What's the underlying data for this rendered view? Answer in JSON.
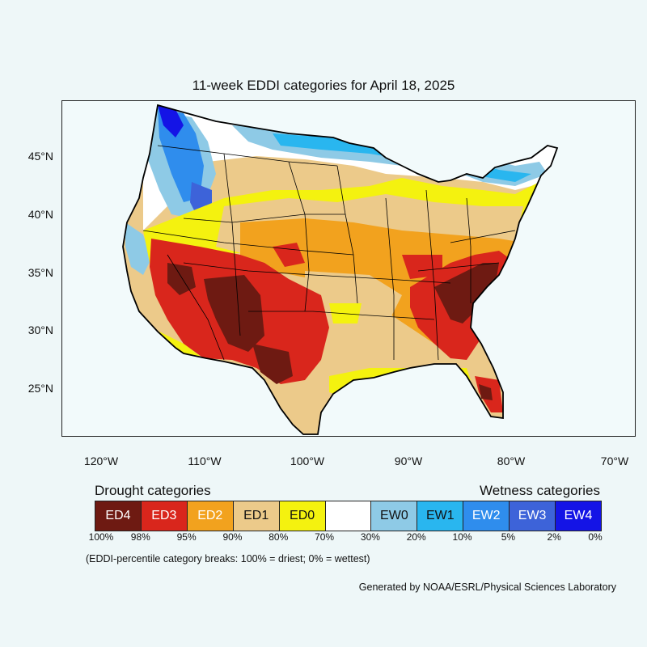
{
  "title": "11-week EDDI categories for April 18, 2025",
  "map": {
    "latitude_labels": [
      "45°N",
      "40°N",
      "35°N",
      "30°N",
      "25°N"
    ],
    "longitude_labels": [
      "120°W",
      "110°W",
      "100°W",
      "90°W",
      "80°W",
      "70°W"
    ]
  },
  "legend": {
    "drought_heading": "Drought categories",
    "wetness_heading": "Wetness categories",
    "categories": [
      {
        "label": "ED4",
        "color": "#6e1a12",
        "text_color": "#ffffff"
      },
      {
        "label": "ED3",
        "color": "#d9261c",
        "text_color": "#ffffff"
      },
      {
        "label": "ED2",
        "color": "#f2a21e",
        "text_color": "#ffffff"
      },
      {
        "label": "ED1",
        "color": "#ecca8a",
        "text_color": "#111111"
      },
      {
        "label": "ED0",
        "color": "#f4f20f",
        "text_color": "#111111"
      },
      {
        "label": "",
        "color": "#ffffff",
        "text_color": "#111111"
      },
      {
        "label": "EW0",
        "color": "#8ecae6",
        "text_color": "#111111"
      },
      {
        "label": "EW1",
        "color": "#29b6ef",
        "text_color": "#111111"
      },
      {
        "label": "EW2",
        "color": "#2f8ded",
        "text_color": "#ffffff"
      },
      {
        "label": "EW3",
        "color": "#3d63d9",
        "text_color": "#ffffff"
      },
      {
        "label": "EW4",
        "color": "#1414e6",
        "text_color": "#ffffff"
      }
    ],
    "breaks": [
      "100%",
      "98%",
      "95%",
      "90%",
      "80%",
      "70%",
      "30%",
      "20%",
      "10%",
      "5%",
      "2%",
      "0%"
    ]
  },
  "note": "(EDDI-percentile category breaks: 100% = driest; 0% = wettest)",
  "credit": "Generated by NOAA/ESRL/Physical Sciences Laboratory"
}
